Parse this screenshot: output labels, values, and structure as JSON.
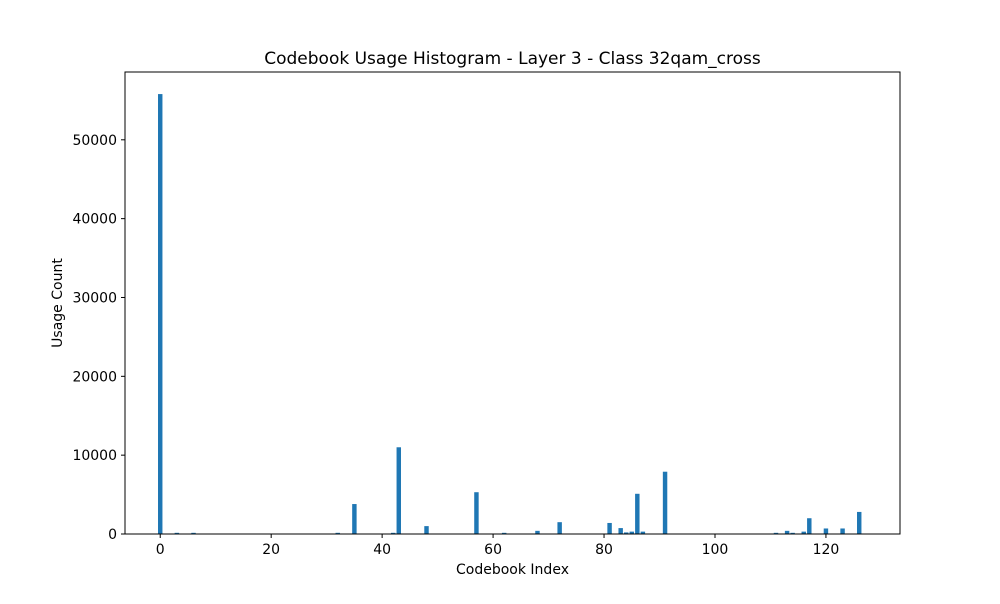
{
  "chart_data": {
    "type": "bar",
    "title": "Codebook Usage Histogram - Layer 3 - Class 32qam_cross",
    "xlabel": "Codebook Index",
    "ylabel": "Usage Count",
    "xlim": [
      -6.35,
      133.35
    ],
    "ylim": [
      0,
      58600
    ],
    "xticks": [
      0,
      20,
      40,
      60,
      80,
      100,
      120
    ],
    "yticks": [
      0,
      10000,
      20000,
      30000,
      40000,
      50000
    ],
    "bar_width": 0.8,
    "bar_color": "#1f77b4",
    "grid": false,
    "legend": "none",
    "x": [
      0,
      3,
      6,
      32,
      35,
      42,
      43,
      48,
      57,
      62,
      68,
      72,
      81,
      83,
      84,
      85,
      86,
      87,
      91,
      111,
      113,
      114,
      116,
      117,
      120,
      123,
      126
    ],
    "values": [
      55800,
      150,
      150,
      150,
      3800,
      150,
      11000,
      1000,
      5300,
      150,
      400,
      1500,
      1400,
      750,
      200,
      300,
      5100,
      300,
      7900,
      150,
      400,
      150,
      300,
      2000,
      700,
      700,
      2800
    ]
  }
}
